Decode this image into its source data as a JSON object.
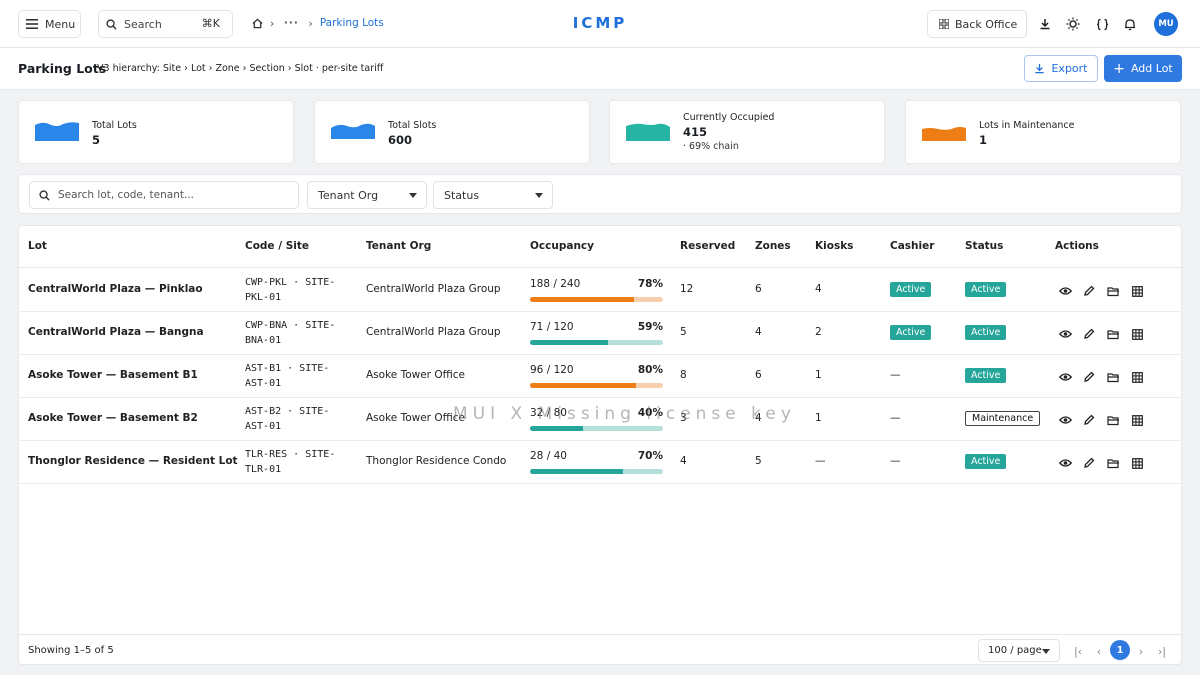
{
  "topbar": {
    "menu_label": "Menu",
    "search_label": "Search",
    "search_shortcut": "⌘K",
    "breadcrumb_current": "Parking Lots",
    "brand": "ICMP",
    "back_office_label": "Back Office",
    "avatar_initials": "MU"
  },
  "header": {
    "title": "Parking Lots",
    "subtitle": "V3 hierarchy: Site › Lot › Zone › Section › Slot · per-site tariff",
    "export_label": "Export",
    "add_label": "Add Lot"
  },
  "stats": [
    {
      "label": "Total Lots",
      "value": "5",
      "note": "",
      "color": "#2a86e8"
    },
    {
      "label": "Total Slots",
      "value": "600",
      "note": "",
      "color": "#2a86e8"
    },
    {
      "label": "Currently Occupied",
      "value": "415",
      "note": "· 69% chain",
      "color": "#26b5a5"
    },
    {
      "label": "Lots in Maintenance",
      "value": "1",
      "note": "",
      "color": "#ef7d16"
    }
  ],
  "filters": {
    "search_placeholder": "Search lot, code, tenant...",
    "tenant_label": "Tenant Org",
    "status_label": "Status"
  },
  "table": {
    "columns": {
      "lot": "Lot",
      "code": "Code / Site",
      "tenant": "Tenant Org",
      "occupancy": "Occupancy",
      "reserved": "Reserved",
      "zones": "Zones",
      "kiosks": "Kiosks",
      "cashier": "Cashier",
      "status": "Status",
      "actions": "Actions"
    },
    "rows": [
      {
        "lot": "CentralWorld Plaza — Pinklao",
        "code1": "CWP-PKL · SITE-",
        "code2": "PKL-01",
        "tenant": "CentralWorld Plaza Group",
        "occ": "188 / 240",
        "pct": "78%",
        "ratio": 0.78,
        "bar": "#ef7d16",
        "track": "#f6cfae",
        "reserved": "12",
        "zones": "6",
        "kiosks": "4",
        "cashier": "Active",
        "status": "Active"
      },
      {
        "lot": "CentralWorld Plaza — Bangna",
        "code1": "CWP-BNA · SITE-",
        "code2": "BNA-01",
        "tenant": "CentralWorld Plaza Group",
        "occ": "71 / 120",
        "pct": "59%",
        "ratio": 0.59,
        "bar": "#26a69a",
        "track": "#b5e0da",
        "reserved": "5",
        "zones": "4",
        "kiosks": "2",
        "cashier": "Active",
        "status": "Active"
      },
      {
        "lot": "Asoke Tower — Basement B1",
        "code1": "AST-B1 · SITE-",
        "code2": "AST-01",
        "tenant": "Asoke Tower Office",
        "occ": "96 / 120",
        "pct": "80%",
        "ratio": 0.8,
        "bar": "#ef7d16",
        "track": "#f6cfae",
        "reserved": "8",
        "zones": "6",
        "kiosks": "1",
        "cashier": "—",
        "status": "Active"
      },
      {
        "lot": "Asoke Tower — Basement B2",
        "code1": "AST-B2 · SITE-",
        "code2": "AST-01",
        "tenant": "Asoke Tower Office",
        "occ": "32 / 80",
        "pct": "40%",
        "ratio": 0.4,
        "bar": "#26a69a",
        "track": "#b5e0da",
        "reserved": "3",
        "zones": "4",
        "kiosks": "1",
        "cashier": "—",
        "status": "Maintenance"
      },
      {
        "lot": "Thonglor Residence — Resident Lot",
        "code1": "TLR-RES · SITE-",
        "code2": "TLR-01",
        "tenant": "Thonglor Residence Condo",
        "occ": "28 / 40",
        "pct": "70%",
        "ratio": 0.7,
        "bar": "#26a69a",
        "track": "#b5e0da",
        "reserved": "4",
        "zones": "5",
        "kiosks": "—",
        "cashier": "—",
        "status": "Active"
      }
    ]
  },
  "footer": {
    "showing": "Showing 1–5 of 5",
    "per_page": "100 / page",
    "current_page": "1"
  },
  "watermark": "MUI X Missing license key"
}
